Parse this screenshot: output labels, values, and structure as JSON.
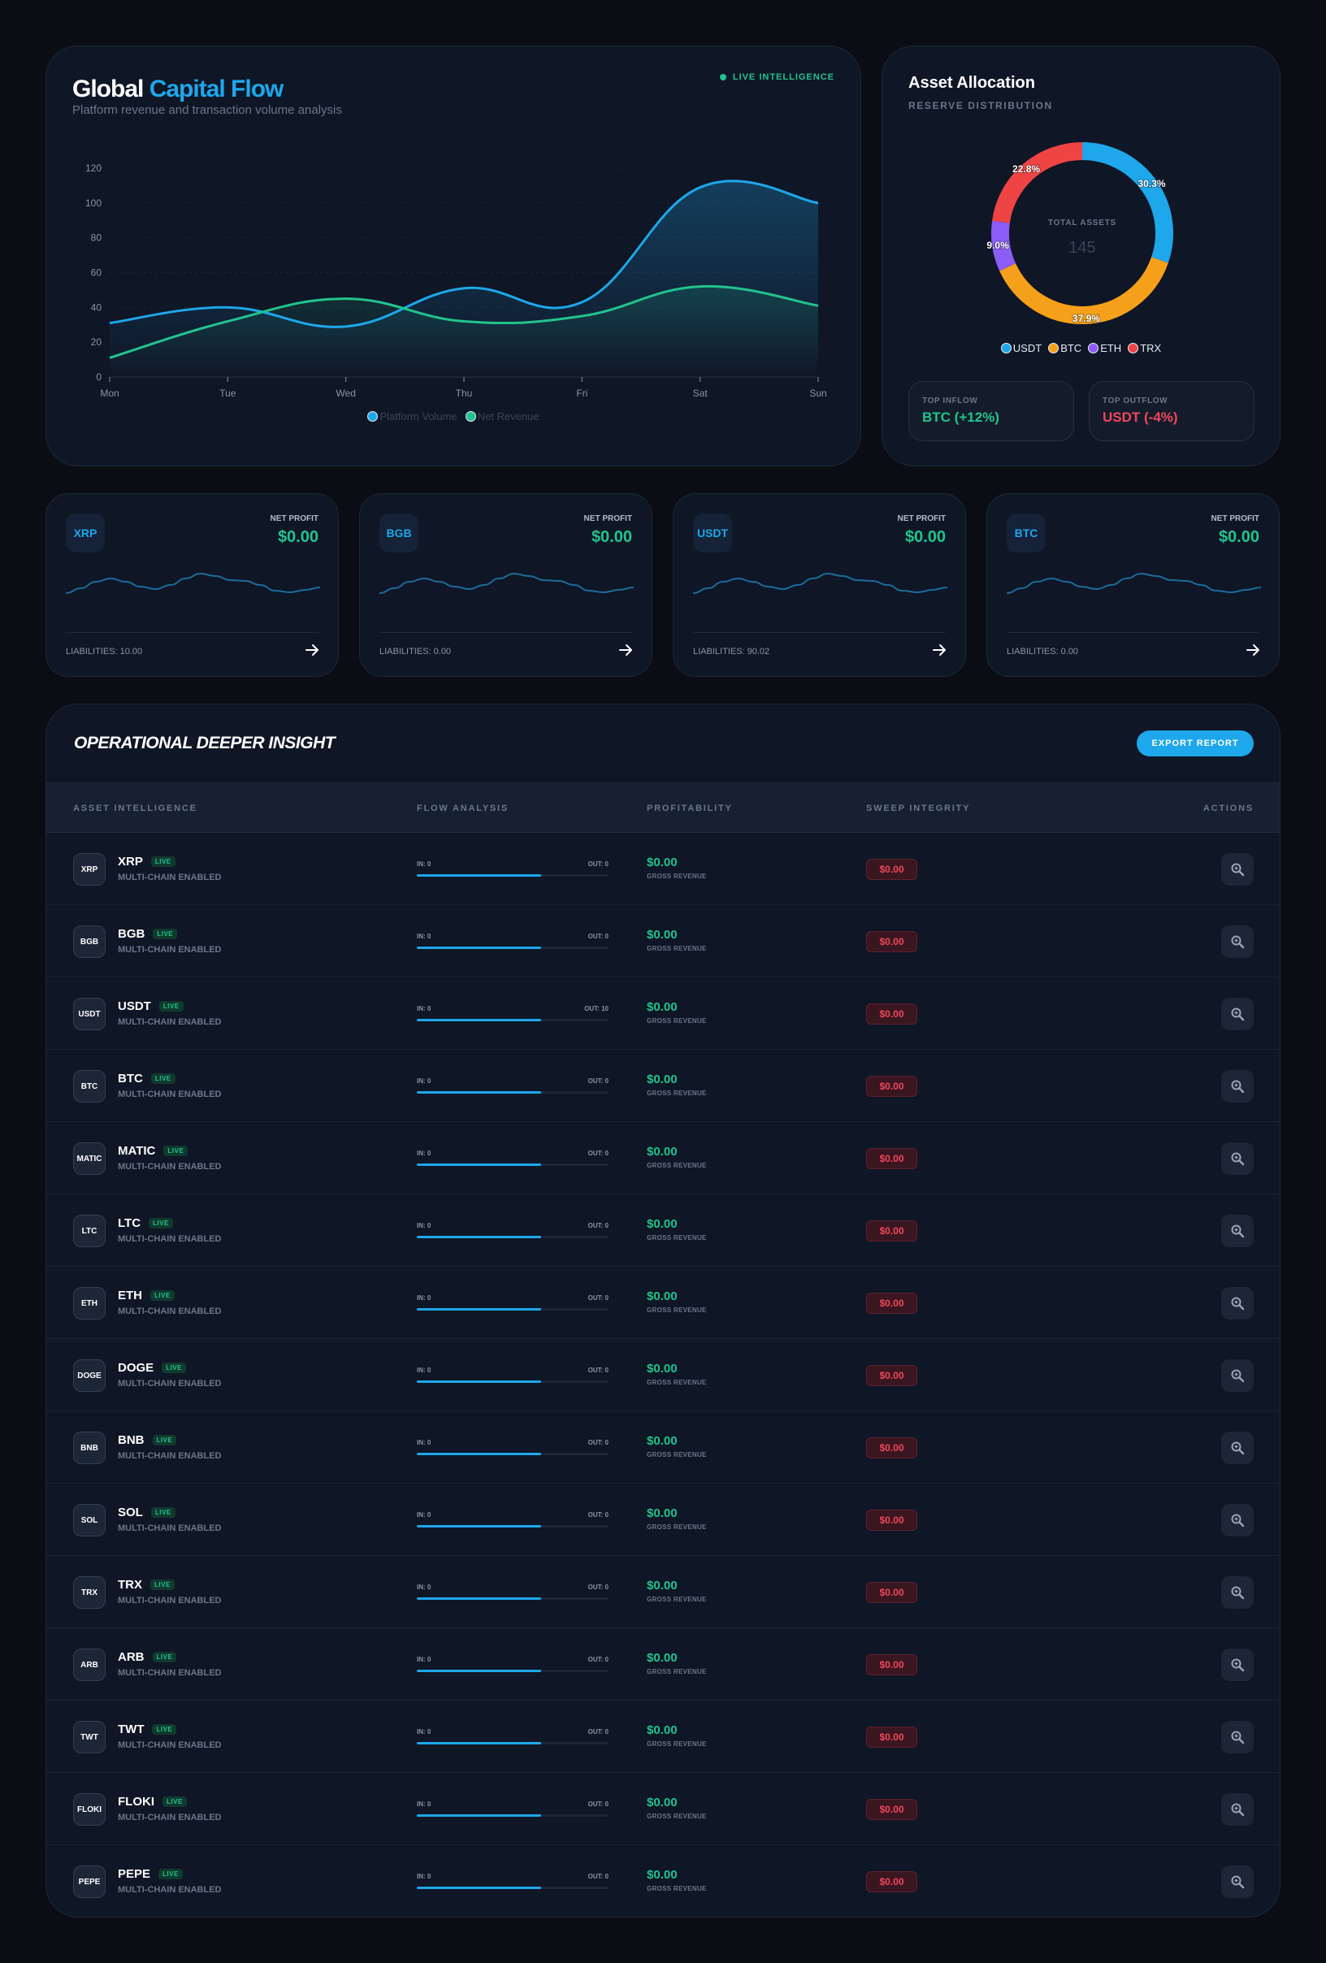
{
  "flow": {
    "title_a": "Global",
    "title_b": "Capital Flow",
    "subtitle": "Platform revenue and transaction volume analysis",
    "live_label": "LIVE INTELLIGENCE",
    "legend": [
      "Platform Volume",
      "Net Revenue"
    ]
  },
  "chart_data": [
    {
      "type": "area",
      "categories": [
        "Mon",
        "Tue",
        "Wed",
        "Thu",
        "Fri",
        "Sat",
        "Sun"
      ],
      "ylim": [
        0,
        120
      ],
      "yticks": [
        0,
        20,
        40,
        60,
        80,
        100,
        120
      ],
      "series": [
        {
          "name": "Platform Volume",
          "color": "#1ea7ea",
          "values": [
            31,
            40,
            29,
            51,
            43,
            109,
            100
          ]
        },
        {
          "name": "Net Revenue",
          "color": "#22c38e",
          "values": [
            11,
            32,
            45,
            32,
            35,
            52,
            41
          ]
        }
      ],
      "grid": true,
      "legend_position": "bottom"
    },
    {
      "type": "pie",
      "title": "Asset Allocation",
      "subtitle": "RESERVE DISTRIBUTION",
      "center_label": "TOTAL ASSETS",
      "center_value": "145",
      "slices": [
        {
          "label": "USDT",
          "value": 30.3,
          "color": "#1ea7ea",
          "text": "30.3%"
        },
        {
          "label": "BTC",
          "value": 37.9,
          "color": "#f5a01a",
          "text": "37.9%"
        },
        {
          "label": "ETH",
          "value": 9.0,
          "color": "#8b5cf6",
          "text": "9.0%"
        },
        {
          "label": "TRX",
          "value": 22.8,
          "color": "#ef4444",
          "text": "22.8%"
        }
      ]
    }
  ],
  "alloc": {
    "title": "Asset Allocation",
    "subtitle": "RESERVE DISTRIBUTION",
    "legend": [
      "USDT",
      "BTC",
      "ETH",
      "TRX"
    ],
    "top_inflow_label": "TOP INFLOW",
    "top_inflow_value": "BTC (+12%)",
    "top_outflow_label": "TOP OUTFLOW",
    "top_outflow_value": "USDT (-4%)"
  },
  "minis": [
    {
      "symbol": "XRP",
      "profit_label": "NET PROFIT",
      "profit": "$0.00",
      "liabilities": "LIABILITIES: 10.00"
    },
    {
      "symbol": "BGB",
      "profit_label": "NET PROFIT",
      "profit": "$0.00",
      "liabilities": "LIABILITIES: 0.00"
    },
    {
      "symbol": "USDT",
      "profit_label": "NET PROFIT",
      "profit": "$0.00",
      "liabilities": "LIABILITIES: 90.02"
    },
    {
      "symbol": "BTC",
      "profit_label": "NET PROFIT",
      "profit": "$0.00",
      "liabilities": "LIABILITIES: 0.00"
    }
  ],
  "table": {
    "title": "OPERATIONAL DEEPER INSIGHT",
    "export_label": "EXPORT REPORT",
    "headers": [
      "ASSET INTELLIGENCE",
      "FLOW ANALYSIS",
      "PROFITABILITY",
      "SWEEP INTEGRITY",
      "ACTIONS"
    ],
    "live_label": "LIVE",
    "multi_label": "MULTI-CHAIN ENABLED",
    "gross_label": "GROSS REVENUE",
    "rows": [
      {
        "symbol": "XRP",
        "in": "IN: 0",
        "out": "OUT: 0",
        "flow_fraction": 0.65,
        "profit": "$0.00",
        "sweep": "$0.00"
      },
      {
        "symbol": "BGB",
        "in": "IN: 0",
        "out": "OUT: 0",
        "flow_fraction": 0.65,
        "profit": "$0.00",
        "sweep": "$0.00"
      },
      {
        "symbol": "USDT",
        "in": "IN: 0",
        "out": "OUT: 10",
        "flow_fraction": 0.65,
        "profit": "$0.00",
        "sweep": "$0.00"
      },
      {
        "symbol": "BTC",
        "in": "IN: 0",
        "out": "OUT: 0",
        "flow_fraction": 0.65,
        "profit": "$0.00",
        "sweep": "$0.00"
      },
      {
        "symbol": "MATIC",
        "in": "IN: 0",
        "out": "OUT: 0",
        "flow_fraction": 0.65,
        "profit": "$0.00",
        "sweep": "$0.00"
      },
      {
        "symbol": "LTC",
        "in": "IN: 0",
        "out": "OUT: 0",
        "flow_fraction": 0.65,
        "profit": "$0.00",
        "sweep": "$0.00"
      },
      {
        "symbol": "ETH",
        "in": "IN: 0",
        "out": "OUT: 0",
        "flow_fraction": 0.65,
        "profit": "$0.00",
        "sweep": "$0.00"
      },
      {
        "symbol": "DOGE",
        "in": "IN: 0",
        "out": "OUT: 0",
        "flow_fraction": 0.65,
        "profit": "$0.00",
        "sweep": "$0.00"
      },
      {
        "symbol": "BNB",
        "in": "IN: 0",
        "out": "OUT: 0",
        "flow_fraction": 0.65,
        "profit": "$0.00",
        "sweep": "$0.00"
      },
      {
        "symbol": "SOL",
        "in": "IN: 0",
        "out": "OUT: 0",
        "flow_fraction": 0.65,
        "profit": "$0.00",
        "sweep": "$0.00"
      },
      {
        "symbol": "TRX",
        "in": "IN: 0",
        "out": "OUT: 0",
        "flow_fraction": 0.65,
        "profit": "$0.00",
        "sweep": "$0.00"
      },
      {
        "symbol": "ARB",
        "in": "IN: 0",
        "out": "OUT: 0",
        "flow_fraction": 0.65,
        "profit": "$0.00",
        "sweep": "$0.00"
      },
      {
        "symbol": "TWT",
        "in": "IN: 0",
        "out": "OUT: 0",
        "flow_fraction": 0.65,
        "profit": "$0.00",
        "sweep": "$0.00"
      },
      {
        "symbol": "FLOKI",
        "in": "IN: 0",
        "out": "OUT: 0",
        "flow_fraction": 0.65,
        "profit": "$0.00",
        "sweep": "$0.00"
      },
      {
        "symbol": "PEPE",
        "in": "IN: 0",
        "out": "OUT: 0",
        "flow_fraction": 0.65,
        "profit": "$0.00",
        "sweep": "$0.00"
      }
    ]
  },
  "icons": {
    "row_action": "zoom-search-icon",
    "mini_action": "arrow-right-icon"
  }
}
